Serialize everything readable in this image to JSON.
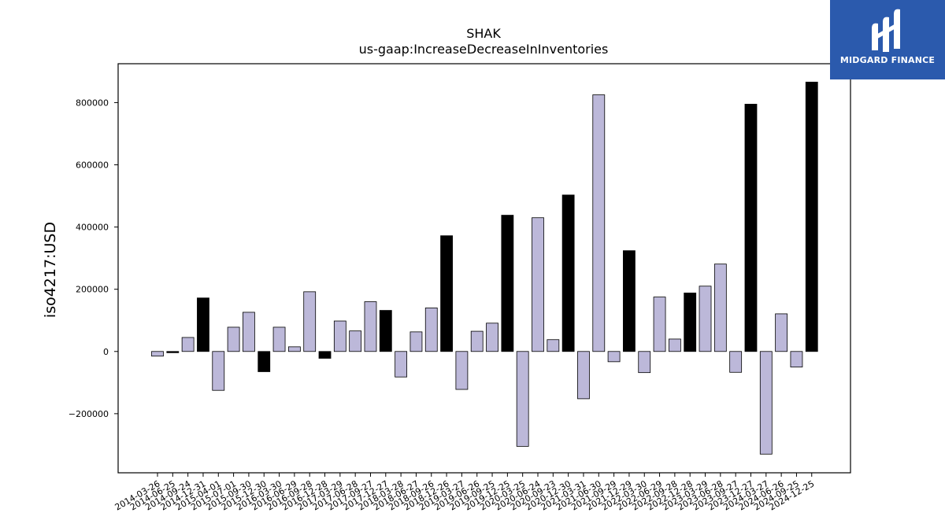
{
  "chart_data": {
    "type": "bar",
    "title": "SHAK",
    "subtitle": "us-gaap:IncreaseDecreaseInInventories",
    "xlabel": "",
    "ylabel": "iso4217:USD",
    "ylim": [
      -390000,
      925000
    ],
    "yticks": [
      -200000,
      0,
      200000,
      400000,
      600000,
      800000
    ],
    "ytick_labels": [
      "−200000",
      "0",
      "200000",
      "400000",
      "600000",
      "800000"
    ],
    "grid": false,
    "colors": {
      "quarterly": "#bcb8d9",
      "annual": "#000000",
      "edge": "#000000"
    },
    "categories": [
      "2014-03-26",
      "2014-06-25",
      "2014-09-24",
      "2014-12-31",
      "2015-04-01",
      "2015-07-01",
      "2015-09-30",
      "2015-12-30",
      "2016-03-30",
      "2016-06-29",
      "2016-09-28",
      "2016-12-28",
      "2017-03-29",
      "2017-06-28",
      "2017-09-27",
      "2017-12-27",
      "2018-03-28",
      "2018-06-27",
      "2018-09-26",
      "2018-12-26",
      "2019-03-27",
      "2019-06-26",
      "2019-09-25",
      "2019-12-25",
      "2020-03-25",
      "2020-06-24",
      "2020-09-23",
      "2020-12-30",
      "2021-03-31",
      "2021-06-30",
      "2021-09-29",
      "2021-12-29",
      "2022-03-30",
      "2022-06-29",
      "2022-09-28",
      "2022-12-28",
      "2023-03-29",
      "2023-06-28",
      "2023-09-27",
      "2023-12-27",
      "2024-03-27",
      "2024-06-26",
      "2024-09-25",
      "2024-12-25"
    ],
    "series": [
      {
        "values": [
          -15000,
          -4000,
          45000,
          172000,
          -125000,
          78000,
          126000,
          -65000,
          78000,
          15000,
          192000,
          -22000,
          98000,
          66000,
          160000,
          132000,
          -82000,
          63000,
          140000,
          372000,
          -122000,
          65000,
          91000,
          438000,
          -305000,
          430000,
          38000,
          503000,
          -152000,
          825000,
          -33000,
          324000,
          -68000,
          175000,
          40000,
          188000,
          210000,
          281000,
          -67000,
          795000,
          -330000,
          121000,
          -50000,
          866000
        ],
        "bar_type": [
          "quarterly",
          "annual",
          "quarterly",
          "annual",
          "quarterly",
          "quarterly",
          "quarterly",
          "annual",
          "quarterly",
          "quarterly",
          "quarterly",
          "annual",
          "quarterly",
          "quarterly",
          "quarterly",
          "annual",
          "quarterly",
          "quarterly",
          "quarterly",
          "annual",
          "quarterly",
          "quarterly",
          "quarterly",
          "annual",
          "quarterly",
          "quarterly",
          "quarterly",
          "annual",
          "quarterly",
          "quarterly",
          "quarterly",
          "annual",
          "quarterly",
          "quarterly",
          "quarterly",
          "annual",
          "quarterly",
          "quarterly",
          "quarterly",
          "annual",
          "quarterly",
          "quarterly",
          "quarterly",
          "annual"
        ]
      }
    ]
  },
  "logo": {
    "text": "MIDGARD FINANCE",
    "background": "#2b5aad"
  }
}
